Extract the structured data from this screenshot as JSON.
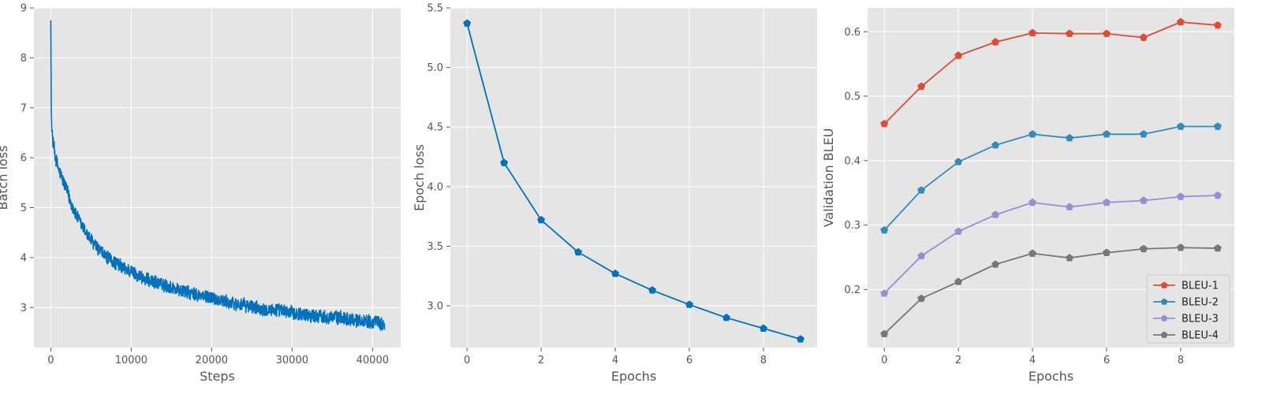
{
  "chart_data": [
    {
      "type": "line",
      "xlabel": "Steps",
      "ylabel": "Batch loss",
      "xlim": [
        -2100,
        43500
      ],
      "ylim": [
        2.2,
        9.0
      ],
      "xticks": [
        0,
        10000,
        20000,
        30000,
        40000
      ],
      "xtick_labels": [
        "0",
        "10000",
        "20000",
        "30000",
        "40000"
      ],
      "yticks": [
        3,
        4,
        5,
        6,
        7,
        8,
        9
      ],
      "ytick_labels": [
        "3",
        "4",
        "5",
        "6",
        "7",
        "8",
        "9"
      ],
      "grid": true,
      "series": [
        {
          "name": "batch loss",
          "color": "#0072BD",
          "noise_amplitude": 0.15,
          "x": [
            0,
            60,
            150,
            300,
            600,
            1000,
            1500,
            2000,
            2500,
            3000,
            4000,
            5000,
            6000,
            7000,
            8000,
            9000,
            10000,
            12000,
            14000,
            16000,
            18000,
            20000,
            22000,
            24000,
            26000,
            28000,
            30000,
            32000,
            34000,
            36000,
            38000,
            40000,
            41500
          ],
          "y": [
            8.75,
            6.9,
            6.5,
            6.3,
            6.0,
            5.75,
            5.55,
            5.35,
            5.1,
            4.9,
            4.6,
            4.35,
            4.15,
            4.0,
            3.9,
            3.8,
            3.72,
            3.55,
            3.45,
            3.35,
            3.25,
            3.2,
            3.1,
            3.05,
            2.98,
            2.95,
            2.9,
            2.85,
            2.82,
            2.8,
            2.75,
            2.72,
            2.65
          ]
        }
      ]
    },
    {
      "type": "line",
      "xlabel": "Epochs",
      "ylabel": "Epoch loss",
      "xlim": [
        -0.45,
        9.45
      ],
      "ylim": [
        2.65,
        5.5
      ],
      "xticks": [
        0,
        2,
        4,
        6,
        8
      ],
      "xtick_labels": [
        "0",
        "2",
        "4",
        "6",
        "8"
      ],
      "yticks": [
        3.0,
        3.5,
        4.0,
        4.5,
        5.0,
        5.5
      ],
      "ytick_labels": [
        "3.0",
        "3.5",
        "4.0",
        "4.5",
        "5.0",
        "5.5"
      ],
      "grid": true,
      "series": [
        {
          "name": "epoch loss",
          "color": "#0072BD",
          "marker": "pentagon",
          "x": [
            0,
            1,
            2,
            3,
            4,
            5,
            6,
            7,
            8,
            9
          ],
          "y": [
            5.37,
            4.2,
            3.72,
            3.45,
            3.27,
            3.13,
            3.01,
            2.9,
            2.81,
            2.72
          ]
        }
      ]
    },
    {
      "type": "line",
      "xlabel": "Epochs",
      "ylabel": "Validation BLEU",
      "xlim": [
        -0.45,
        9.45
      ],
      "ylim": [
        0.11,
        0.637
      ],
      "xticks": [
        0,
        2,
        4,
        6,
        8
      ],
      "xtick_labels": [
        "0",
        "2",
        "4",
        "6",
        "8"
      ],
      "yticks": [
        0.2,
        0.3,
        0.4,
        0.5,
        0.6
      ],
      "ytick_labels": [
        "0.2",
        "0.3",
        "0.4",
        "0.5",
        "0.6"
      ],
      "grid": true,
      "legend": "bottom-right",
      "series": [
        {
          "name": "BLEU-1",
          "color": "#E24A33",
          "marker": "pentagon",
          "x": [
            0,
            1,
            2,
            3,
            4,
            5,
            6,
            7,
            8,
            9
          ],
          "y": [
            0.457,
            0.515,
            0.563,
            0.584,
            0.598,
            0.597,
            0.597,
            0.591,
            0.615,
            0.61
          ]
        },
        {
          "name": "BLEU-2",
          "color": "#348ABD",
          "marker": "pentagon",
          "x": [
            0,
            1,
            2,
            3,
            4,
            5,
            6,
            7,
            8,
            9
          ],
          "y": [
            0.292,
            0.354,
            0.398,
            0.424,
            0.441,
            0.435,
            0.441,
            0.441,
            0.453,
            0.453
          ]
        },
        {
          "name": "BLEU-3",
          "color": "#988ED5",
          "marker": "pentagon",
          "x": [
            0,
            1,
            2,
            3,
            4,
            5,
            6,
            7,
            8,
            9
          ],
          "y": [
            0.194,
            0.252,
            0.29,
            0.316,
            0.335,
            0.328,
            0.335,
            0.338,
            0.344,
            0.346
          ]
        },
        {
          "name": "BLEU-4",
          "color": "#777777",
          "marker": "pentagon",
          "x": [
            0,
            1,
            2,
            3,
            4,
            5,
            6,
            7,
            8,
            9
          ],
          "y": [
            0.131,
            0.186,
            0.212,
            0.239,
            0.256,
            0.249,
            0.257,
            0.263,
            0.265,
            0.264
          ]
        }
      ]
    }
  ]
}
